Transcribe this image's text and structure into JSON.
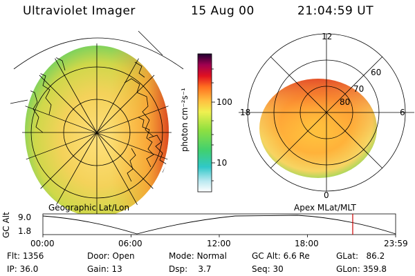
{
  "header": {
    "instrument": "Ultraviolet Imager",
    "date": "15 Aug 00",
    "time": "21:04:59 UT"
  },
  "panels": {
    "left_label": "Geographic Lat/Lon",
    "right_label": "Apex MLat/MLT"
  },
  "colorbar": {
    "unit_label": "photon cm⁻²s⁻¹",
    "ticks": [
      "100",
      "10"
    ]
  },
  "polar_plot": {
    "mlt_labels": {
      "top": "12",
      "bottom": "0",
      "left": "18",
      "right": "6"
    },
    "lat_labels": [
      "60",
      "70",
      "80"
    ]
  },
  "altitude_strip": {
    "ylabel": "GC Alt",
    "yticks": [
      "9.0",
      "1.8"
    ],
    "xticks": [
      "00:00",
      "06:00",
      "12:00",
      "18:00",
      "23:59"
    ],
    "marker_time_hours": 21.08
  },
  "status": {
    "flt_label": "Flt:",
    "flt_value": "1356",
    "ip_label": "IP:",
    "ip_value": "36.0",
    "door_label": "Door:",
    "door_value": "Open",
    "gain_label": "Gain:",
    "gain_value": "13",
    "mode_label": "Mode:",
    "mode_value": "Normal",
    "dsp_label": "Dsp:",
    "dsp_value": "3.7",
    "gcalt_label": "GC Alt:",
    "gcalt_value": "6.6 Re",
    "seq_label": "Seq:",
    "seq_value": "30",
    "glat_label": "GLat:",
    "glat_value": "86.2",
    "glon_label": "GLon:",
    "glon_value": "359.8"
  },
  "colors": {
    "marker": "#cc0000"
  }
}
